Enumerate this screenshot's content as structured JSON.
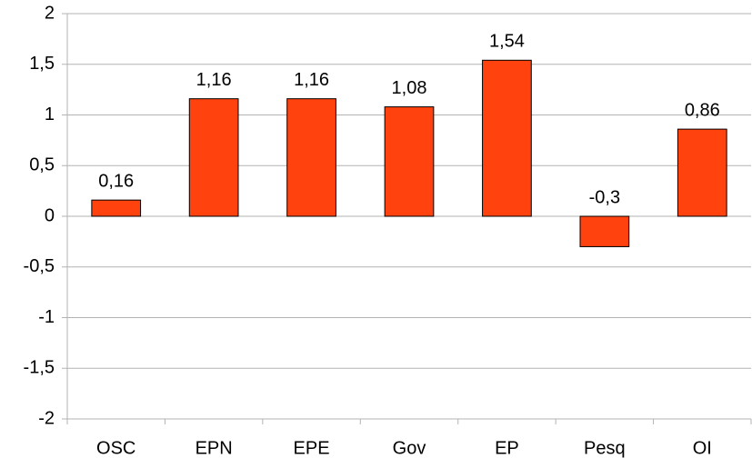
{
  "chart_data": {
    "type": "bar",
    "categories": [
      "OSC",
      "EPN",
      "EPE",
      "Gov",
      "EP",
      "Pesq",
      "OI"
    ],
    "values": [
      0.16,
      1.16,
      1.16,
      1.08,
      1.54,
      -0.3,
      0.86
    ],
    "value_labels": [
      "0,16",
      "1,16",
      "1,16",
      "1,08",
      "1,54",
      "-0,3",
      "0,86"
    ],
    "color": "#ff420e",
    "ylim": [
      -2,
      2
    ],
    "yticks": [
      -2,
      {
        "value": -1.5,
        "label": "-1,5"
      },
      -1,
      {
        "value": -0.5,
        "label": "-0,5"
      },
      0,
      {
        "value": 0.5,
        "label": "0,5"
      },
      1,
      {
        "value": 1.5,
        "label": "1,5"
      },
      2
    ],
    "grid": true
  }
}
